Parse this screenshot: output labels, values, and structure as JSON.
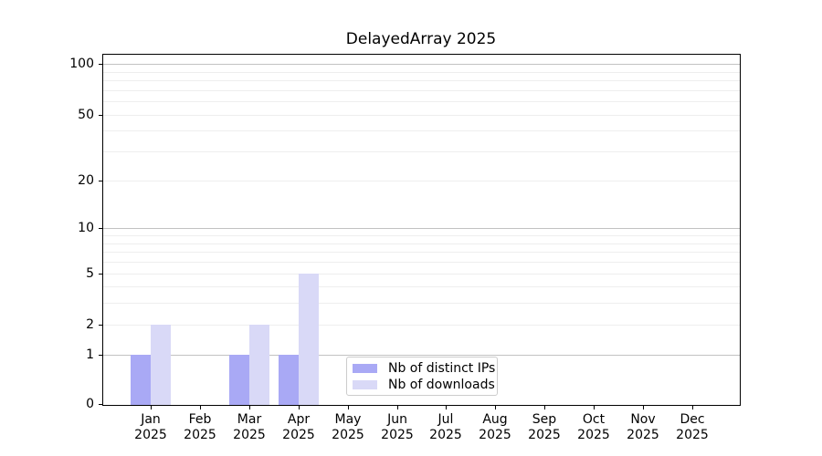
{
  "chart_data": {
    "type": "bar",
    "title": "DelayedArray 2025",
    "categories": [
      "Jan 2025",
      "Feb 2025",
      "Mar 2025",
      "Apr 2025",
      "May 2025",
      "Jun 2025",
      "Jul 2025",
      "Aug 2025",
      "Sep 2025",
      "Oct 2025",
      "Nov 2025",
      "Dec 2025"
    ],
    "series": [
      {
        "name": "Nb of distinct IPs",
        "color": "#a9a9f5",
        "values": [
          1,
          0,
          1,
          1,
          0,
          0,
          0,
          0,
          0,
          0,
          0,
          0
        ]
      },
      {
        "name": "Nb of downloads",
        "color": "#d9d9f7",
        "values": [
          2,
          0,
          2,
          5,
          0,
          0,
          0,
          0,
          0,
          0,
          0,
          0
        ]
      }
    ],
    "xlabel": "",
    "ylabel": "",
    "yscale": "log1p",
    "ylim": [
      0,
      114
    ],
    "yticks": [
      0,
      1,
      2,
      5,
      10,
      20,
      50,
      100
    ],
    "grid": {
      "on": true,
      "orientation": "horizontal",
      "major_values": [
        1,
        10,
        100
      ],
      "minor_values": [
        2,
        3,
        4,
        5,
        6,
        7,
        8,
        9,
        20,
        30,
        40,
        50,
        60,
        70,
        80,
        90
      ],
      "major_color": "#c2c2c2",
      "minor_color": "#eeeeee"
    },
    "legend": {
      "position": "inside bottom, left of center",
      "border_color": "#cccccc"
    }
  }
}
